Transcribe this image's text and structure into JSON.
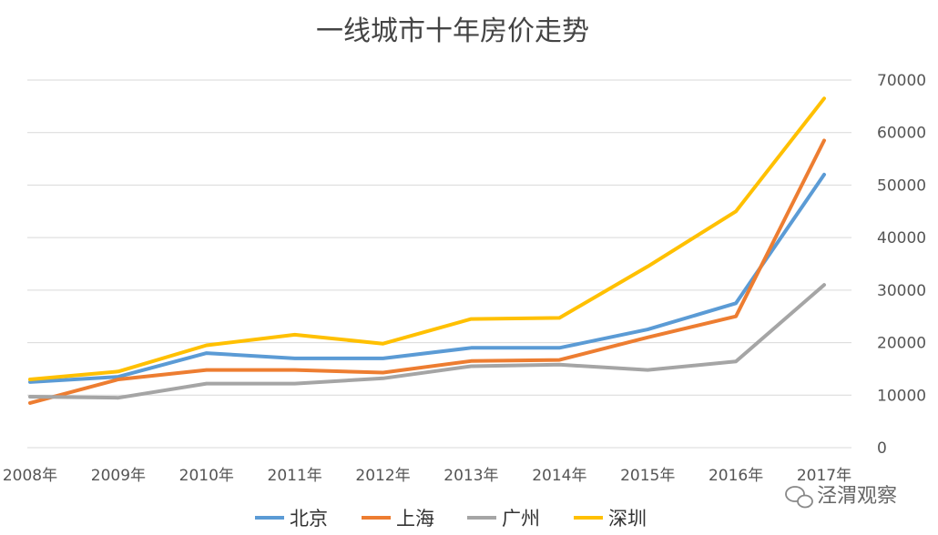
{
  "chart_data": {
    "type": "line",
    "title": "一线城市十年房价走势",
    "xlabel": "",
    "ylabel": "",
    "categories": [
      "2008年",
      "2009年",
      "2010年",
      "2011年",
      "2012年",
      "2013年",
      "2014年",
      "2015年",
      "2016年",
      "2017年"
    ],
    "ylim": [
      0,
      70000
    ],
    "y_ticks": [
      "0",
      "10000",
      "20000",
      "30000",
      "40000",
      "50000",
      "60000",
      "70000"
    ],
    "y_axis_side": "right",
    "grid": true,
    "legend_position": "bottom",
    "series": [
      {
        "name": "北京",
        "color": "#5B9BD5",
        "values": [
          12500,
          13500,
          18000,
          17000,
          17000,
          19000,
          19000,
          22500,
          27500,
          52000
        ]
      },
      {
        "name": "上海",
        "color": "#ED7D31",
        "values": [
          8500,
          13000,
          14800,
          14800,
          14300,
          16500,
          16700,
          21000,
          25000,
          58500
        ]
      },
      {
        "name": "广州",
        "color": "#A5A5A5",
        "values": [
          9700,
          9500,
          12200,
          12200,
          13200,
          15500,
          15800,
          14800,
          16400,
          31000
        ]
      },
      {
        "name": "深圳",
        "color": "#FFC000",
        "values": [
          13000,
          14500,
          19500,
          21500,
          19800,
          24500,
          24700,
          34500,
          45000,
          66500
        ]
      }
    ]
  },
  "watermark": {
    "text": "泾渭观察"
  }
}
